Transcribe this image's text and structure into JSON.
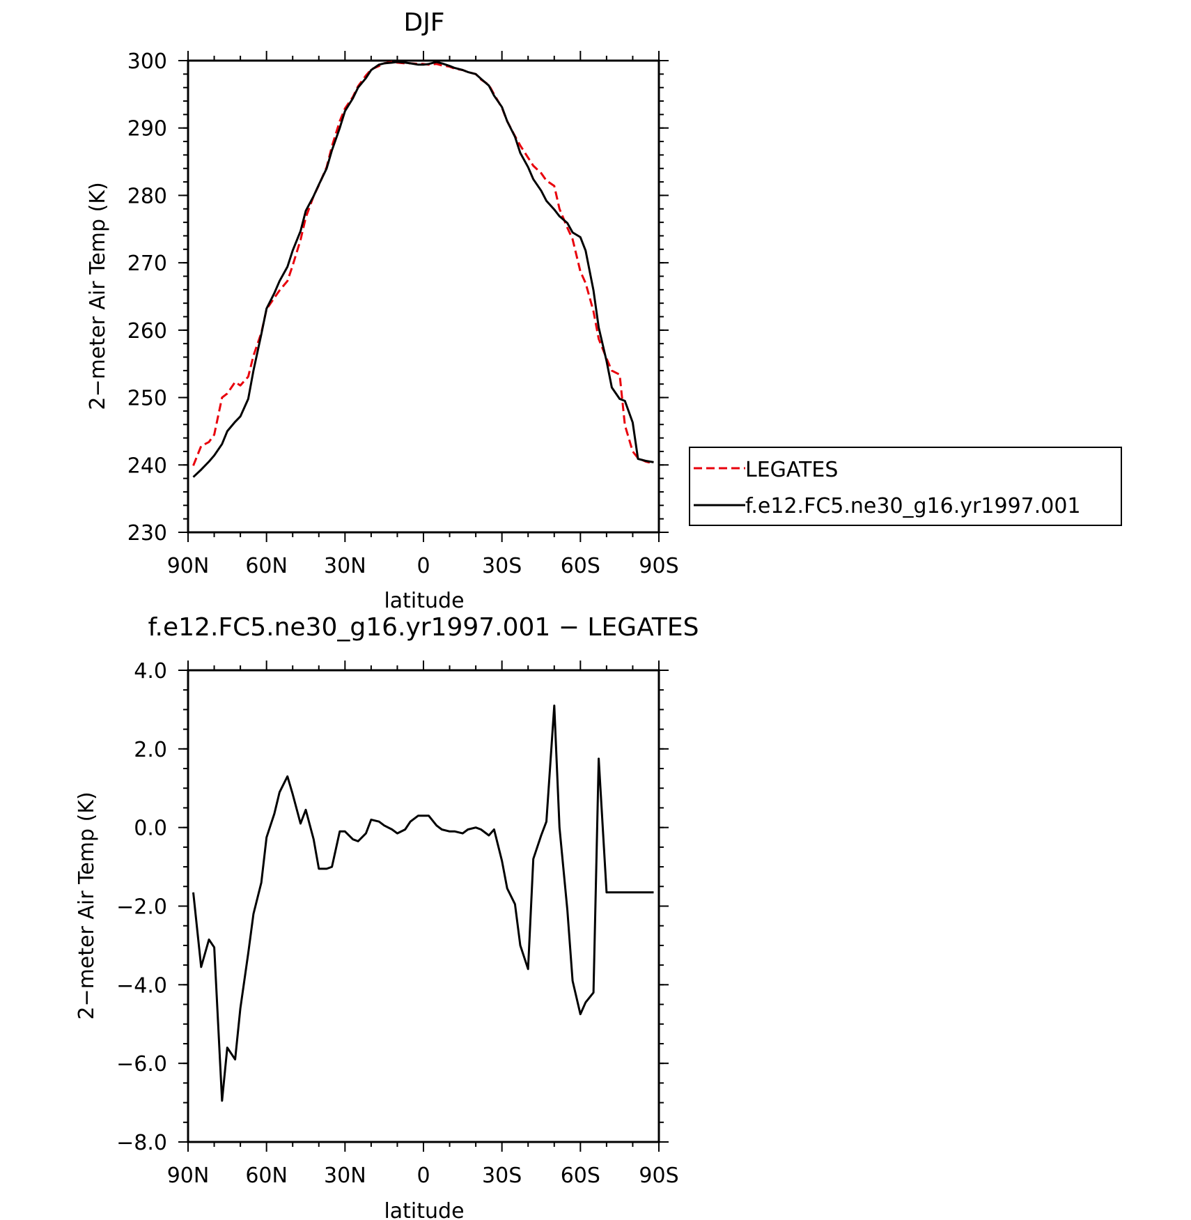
{
  "chart_data": [
    {
      "type": "line",
      "title": "DJF",
      "xlabel": "latitude",
      "ylabel": "2−meter Air Temp (K)",
      "xlim": [
        90,
        -90
      ],
      "ylim": [
        230,
        300
      ],
      "xticks": [
        90,
        60,
        30,
        0,
        -30,
        -60,
        -90
      ],
      "xtick_labels": [
        "90N",
        "60N",
        "30N",
        "0",
        "30S",
        "60S",
        "90S"
      ],
      "yticks": [
        230,
        240,
        250,
        260,
        270,
        280,
        290,
        300
      ],
      "ytick_labels": [
        "230",
        "240",
        "250",
        "260",
        "270",
        "280",
        "290",
        "300"
      ],
      "grid": false,
      "legend_position": "right",
      "series": [
        {
          "name": "LEGATES",
          "color": "#e8000b",
          "style": "dashed",
          "x": [
            88,
            85,
            82,
            80,
            77,
            75,
            72,
            70,
            67,
            65,
            62,
            60,
            57,
            55,
            52,
            50,
            47,
            45,
            42,
            40,
            37,
            35,
            32,
            30,
            27,
            25,
            22,
            20,
            17,
            15,
            12,
            10,
            7,
            5,
            2,
            0,
            -2,
            -5,
            -7,
            -10,
            -12,
            -15,
            -17,
            -20,
            -22,
            -25,
            -27,
            -30,
            -32,
            -35,
            -37,
            -40,
            -42,
            -45,
            -47,
            -50,
            -52,
            -55,
            -57,
            -60,
            -62,
            -65,
            -67,
            -70,
            -72,
            -75,
            -77,
            -80,
            -82,
            -85,
            -88
          ],
          "y": [
            239.9,
            242.8,
            243.4,
            244.5,
            250.0,
            250.6,
            252.3,
            251.8,
            253.1,
            256.2,
            259.6,
            263.1,
            264.8,
            265.9,
            267.3,
            269.6,
            273.4,
            276.7,
            279.9,
            281.5,
            284.2,
            287.3,
            291.0,
            292.9,
            294.6,
            296.2,
            297.8,
            298.7,
            299.2,
            299.6,
            299.8,
            299.7,
            299.6,
            299.6,
            299.5,
            299.5,
            299.4,
            299.5,
            299.3,
            299.1,
            298.8,
            298.6,
            298.3,
            298.0,
            297.2,
            296.4,
            295.0,
            293.0,
            291.0,
            288.8,
            287.4,
            285.6,
            284.4,
            283.3,
            282.2,
            281.4,
            278.0,
            275.2,
            273.5,
            268.7,
            267.0,
            262.8,
            258.7,
            255.8,
            254.0,
            253.4,
            245.9,
            242.0,
            241.0,
            240.5,
            240.2
          ]
        },
        {
          "name": "f.e12.FC5.ne30_g16.yr1997.001",
          "color": "#000000",
          "style": "solid",
          "x": [
            88,
            85,
            82,
            80,
            77,
            75,
            72,
            70,
            67,
            65,
            62,
            60,
            57,
            55,
            52,
            50,
            47,
            45,
            42,
            40,
            37,
            35,
            32,
            30,
            27,
            25,
            22,
            20,
            17,
            15,
            12,
            10,
            7,
            5,
            2,
            0,
            -2,
            -5,
            -7,
            -10,
            -12,
            -15,
            -17,
            -20,
            -22,
            -25,
            -27,
            -30,
            -32,
            -35,
            -37,
            -40,
            -42,
            -45,
            -47,
            -50,
            -52,
            -55,
            -57,
            -60,
            -62,
            -65,
            -67,
            -70,
            -72,
            -75,
            -77,
            -80,
            -82,
            -85,
            -88
          ],
          "y": [
            238.2,
            239.3,
            240.5,
            241.4,
            243.1,
            245.0,
            246.4,
            247.2,
            249.8,
            254.0,
            259.4,
            263.2,
            265.5,
            267.3,
            269.4,
            271.8,
            274.7,
            277.7,
            279.9,
            281.6,
            284.0,
            286.7,
            290.0,
            292.5,
            294.4,
            296.0,
            297.4,
            298.6,
            299.4,
            299.6,
            299.7,
            299.8,
            299.7,
            299.6,
            299.4,
            299.4,
            299.5,
            299.8,
            299.6,
            299.2,
            298.9,
            298.6,
            298.3,
            298.0,
            297.3,
            296.3,
            294.8,
            293.1,
            291.0,
            288.7,
            286.3,
            284.2,
            282.4,
            280.7,
            279.2,
            277.9,
            276.9,
            275.9,
            274.5,
            273.8,
            271.8,
            265.9,
            260.4,
            255.4,
            251.5,
            249.8,
            249.5,
            246.3,
            240.9,
            240.6,
            240.4
          ]
        }
      ],
      "legend": [
        "LEGATES",
        "f.e12.FC5.ne30_g16.yr1997.001"
      ]
    },
    {
      "type": "line",
      "title": "f.e12.FC5.ne30_g16.yr1997.001 − LEGATES",
      "xlabel": "latitude",
      "ylabel": "2−meter Air Temp (K)",
      "xlim": [
        90,
        -90
      ],
      "ylim": [
        -8.0,
        4.0
      ],
      "xticks": [
        90,
        60,
        30,
        0,
        -30,
        -60,
        -90
      ],
      "xtick_labels": [
        "90N",
        "60N",
        "30N",
        "0",
        "30S",
        "60S",
        "90S"
      ],
      "yticks": [
        -8.0,
        -6.0,
        -4.0,
        -2.0,
        0.0,
        2.0,
        4.0
      ],
      "ytick_labels": [
        "−8.0",
        "−6.0",
        "−4.0",
        "−2.0",
        "0.0",
        "2.0",
        "4.0"
      ],
      "grid": false,
      "series": [
        {
          "color": "#000000",
          "style": "solid",
          "x": [
            88,
            85,
            82,
            80,
            77,
            75,
            72,
            70,
            67,
            65,
            62,
            60,
            57,
            55,
            52,
            50,
            47,
            45,
            42,
            40,
            37,
            35,
            32,
            30,
            27,
            25,
            22,
            20,
            17,
            15,
            12,
            10,
            7,
            5,
            2,
            0,
            -2,
            -5,
            -7,
            -10,
            -12,
            -15,
            -17,
            -20,
            -22,
            -25,
            -27,
            -30,
            -32,
            -35,
            -37,
            -40,
            -42,
            -45,
            -47,
            -50,
            -52,
            -55,
            -57,
            -60,
            -62,
            -65,
            -67,
            -70,
            -72,
            -75,
            -77,
            -80,
            -82,
            -85,
            -88
          ],
          "y": [
            -1.65,
            -3.55,
            -2.85,
            -3.05,
            -6.95,
            -5.6,
            -5.9,
            -4.6,
            -3.2,
            -2.2,
            -1.4,
            -0.25,
            0.35,
            0.9,
            1.3,
            0.85,
            0.1,
            0.45,
            -0.3,
            -1.05,
            -1.05,
            -1.0,
            -0.1,
            -0.1,
            -0.3,
            -0.35,
            -0.15,
            0.2,
            0.15,
            0.05,
            -0.05,
            -0.15,
            -0.05,
            0.15,
            0.3,
            0.3,
            0.3,
            0.05,
            -0.05,
            -0.1,
            -0.1,
            -0.15,
            -0.05,
            0.0,
            -0.05,
            -0.2,
            -0.05,
            -0.85,
            -1.55,
            -1.95,
            -3.0,
            -3.6,
            -0.8,
            -0.2,
            0.15,
            3.1,
            0.0,
            -2.1,
            -3.9,
            -4.75,
            -4.45,
            -4.2,
            1.75,
            -1.65,
            -1.65,
            -1.65,
            -1.65,
            -1.65,
            -1.65,
            -1.65,
            -1.65
          ]
        }
      ]
    }
  ]
}
